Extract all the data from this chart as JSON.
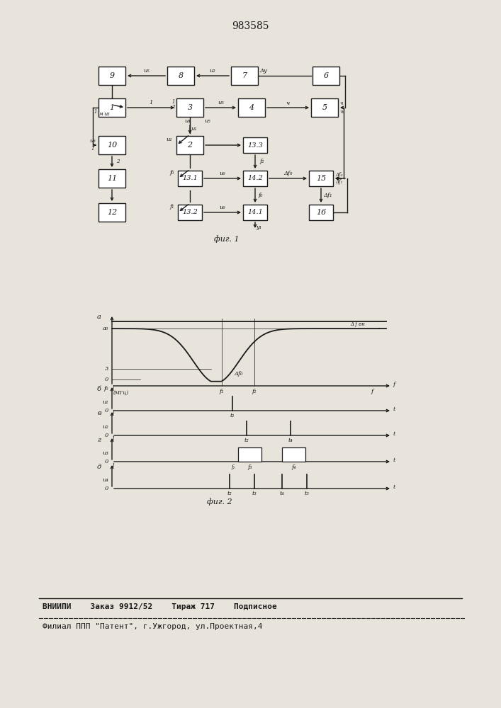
{
  "title_text": "983585",
  "bg_color": "#e8e4dc",
  "line_color": "#1a1a1a",
  "fig1_label": "фиг. 1",
  "fig2_label": "фиг. 2",
  "footer_line1": "ВНИИПИ    Заказ 9912/52    Тираж 717    Подписное",
  "footer_line2": "Филиал ППП \"Патент\", г.Ужгород, ул.Проектная,4"
}
